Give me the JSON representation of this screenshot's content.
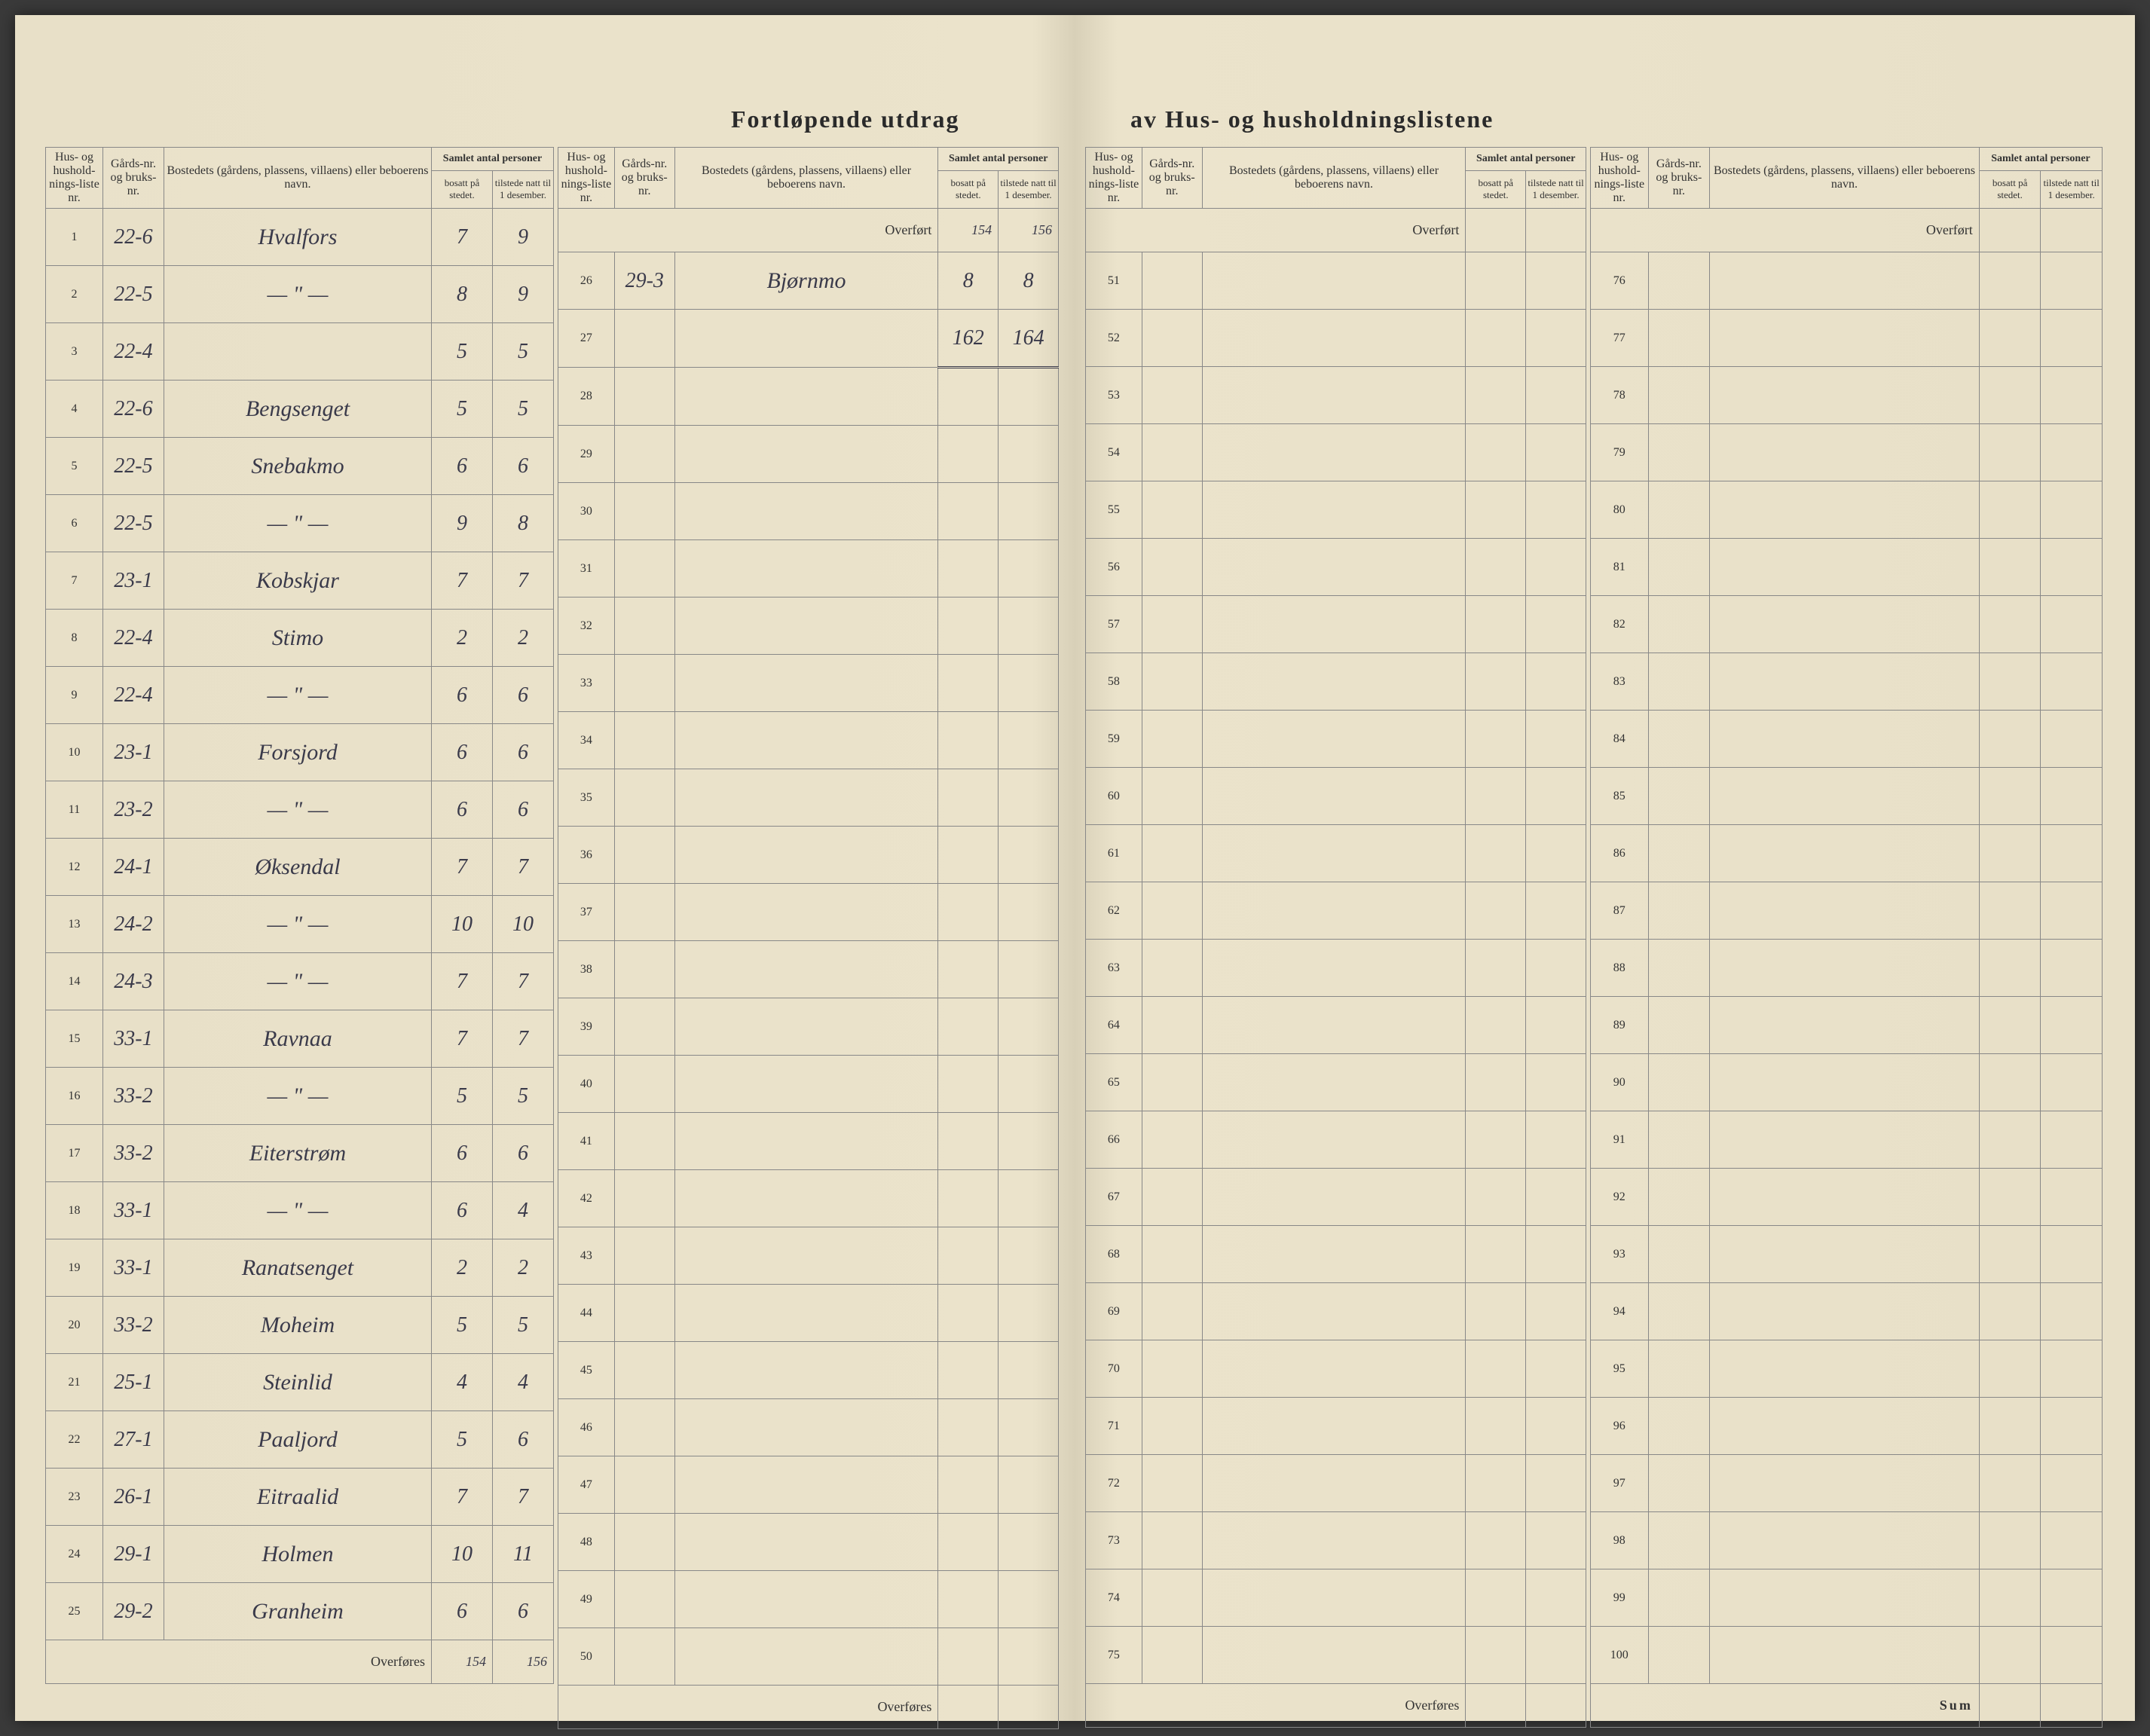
{
  "title_left": "Fortløpende utdrag",
  "title_right": "av Hus- og husholdningslistene",
  "headers": {
    "col1": "Hus- og hushold-nings-liste nr.",
    "col2": "Gårds-nr. og bruks-nr.",
    "col3": "Bostedets (gårdens, plassens, villaens) eller beboerens navn.",
    "col4_group": "Samlet antal personer",
    "col4a": "bosatt på stedet.",
    "col4b": "tilstede natt til 1 desember."
  },
  "overfort_label": "Overført",
  "overfores_label": "Overføres",
  "sum_label": "Sum",
  "section1": {
    "rows": [
      {
        "idx": "1",
        "gard": "22-6",
        "name": "Hvalfors",
        "bosatt": "7",
        "tilstede": "9"
      },
      {
        "idx": "2",
        "gard": "22-5",
        "name": "— \" —",
        "bosatt": "8",
        "tilstede": "9"
      },
      {
        "idx": "3",
        "gard": "22-4",
        "name": "",
        "bosatt": "5",
        "tilstede": "5"
      },
      {
        "idx": "4",
        "gard": "22-6",
        "name": "Bengsenget",
        "bosatt": "5",
        "tilstede": "5"
      },
      {
        "idx": "5",
        "gard": "22-5",
        "name": "Snebakmo",
        "bosatt": "6",
        "tilstede": "6"
      },
      {
        "idx": "6",
        "gard": "22-5",
        "name": "— \" —",
        "bosatt": "9",
        "tilstede": "8"
      },
      {
        "idx": "7",
        "gard": "23-1",
        "name": "Kobskjar",
        "bosatt": "7",
        "tilstede": "7"
      },
      {
        "idx": "8",
        "gard": "22-4",
        "name": "Stimo",
        "bosatt": "2",
        "tilstede": "2"
      },
      {
        "idx": "9",
        "gard": "22-4",
        "name": "— \" —",
        "bosatt": "6",
        "tilstede": "6"
      },
      {
        "idx": "10",
        "gard": "23-1",
        "name": "Forsjord",
        "bosatt": "6",
        "tilstede": "6"
      },
      {
        "idx": "11",
        "gard": "23-2",
        "name": "— \" —",
        "bosatt": "6",
        "tilstede": "6"
      },
      {
        "idx": "12",
        "gard": "24-1",
        "name": "Øksendal",
        "bosatt": "7",
        "tilstede": "7"
      },
      {
        "idx": "13",
        "gard": "24-2",
        "name": "— \" —",
        "bosatt": "10",
        "tilstede": "10"
      },
      {
        "idx": "14",
        "gard": "24-3",
        "name": "— \" —",
        "bosatt": "7",
        "tilstede": "7"
      },
      {
        "idx": "15",
        "gard": "33-1",
        "name": "Ravnaa",
        "bosatt": "7",
        "tilstede": "7"
      },
      {
        "idx": "16",
        "gard": "33-2",
        "name": "— \" —",
        "bosatt": "5",
        "tilstede": "5"
      },
      {
        "idx": "17",
        "gard": "33-2",
        "name": "Eiterstrøm",
        "bosatt": "6",
        "tilstede": "6"
      },
      {
        "idx": "18",
        "gard": "33-1",
        "name": "— \" —",
        "bosatt": "6",
        "tilstede": "4"
      },
      {
        "idx": "19",
        "gard": "33-1",
        "name": "Ranatsenget",
        "bosatt": "2",
        "tilstede": "2"
      },
      {
        "idx": "20",
        "gard": "33-2",
        "name": "Moheim",
        "bosatt": "5",
        "tilstede": "5"
      },
      {
        "idx": "21",
        "gard": "25-1",
        "name": "Steinlid",
        "bosatt": "4",
        "tilstede": "4"
      },
      {
        "idx": "22",
        "gard": "27-1",
        "name": "Paaljord",
        "bosatt": "5",
        "tilstede": "6"
      },
      {
        "idx": "23",
        "gard": "26-1",
        "name": "Eitraalid",
        "bosatt": "7",
        "tilstede": "7"
      },
      {
        "idx": "24",
        "gard": "29-1",
        "name": "Holmen",
        "bosatt": "10",
        "tilstede": "11"
      },
      {
        "idx": "25",
        "gard": "29-2",
        "name": "Granheim",
        "bosatt": "6",
        "tilstede": "6"
      }
    ],
    "overfores_bosatt": "154",
    "overfores_tilstede": "156"
  },
  "section2": {
    "overfort_bosatt": "154",
    "overfort_tilstede": "156",
    "rows": [
      {
        "idx": "26",
        "gard": "29-3",
        "name": "Bjørnmo",
        "bosatt": "8",
        "tilstede": "8"
      },
      {
        "idx": "27",
        "gard": "",
        "name": "",
        "bosatt": "162",
        "tilstede": "164"
      },
      {
        "idx": "28",
        "gard": "",
        "name": "",
        "bosatt": "",
        "tilstede": ""
      },
      {
        "idx": "29",
        "gard": "",
        "name": "",
        "bosatt": "",
        "tilstede": ""
      },
      {
        "idx": "30",
        "gard": "",
        "name": "",
        "bosatt": "",
        "tilstede": ""
      },
      {
        "idx": "31",
        "gard": "",
        "name": "",
        "bosatt": "",
        "tilstede": ""
      },
      {
        "idx": "32",
        "gard": "",
        "name": "",
        "bosatt": "",
        "tilstede": ""
      },
      {
        "idx": "33",
        "gard": "",
        "name": "",
        "bosatt": "",
        "tilstede": ""
      },
      {
        "idx": "34",
        "gard": "",
        "name": "",
        "bosatt": "",
        "tilstede": ""
      },
      {
        "idx": "35",
        "gard": "",
        "name": "",
        "bosatt": "",
        "tilstede": ""
      },
      {
        "idx": "36",
        "gard": "",
        "name": "",
        "bosatt": "",
        "tilstede": ""
      },
      {
        "idx": "37",
        "gard": "",
        "name": "",
        "bosatt": "",
        "tilstede": ""
      },
      {
        "idx": "38",
        "gard": "",
        "name": "",
        "bosatt": "",
        "tilstede": ""
      },
      {
        "idx": "39",
        "gard": "",
        "name": "",
        "bosatt": "",
        "tilstede": ""
      },
      {
        "idx": "40",
        "gard": "",
        "name": "",
        "bosatt": "",
        "tilstede": ""
      },
      {
        "idx": "41",
        "gard": "",
        "name": "",
        "bosatt": "",
        "tilstede": ""
      },
      {
        "idx": "42",
        "gard": "",
        "name": "",
        "bosatt": "",
        "tilstede": ""
      },
      {
        "idx": "43",
        "gard": "",
        "name": "",
        "bosatt": "",
        "tilstede": ""
      },
      {
        "idx": "44",
        "gard": "",
        "name": "",
        "bosatt": "",
        "tilstede": ""
      },
      {
        "idx": "45",
        "gard": "",
        "name": "",
        "bosatt": "",
        "tilstede": ""
      },
      {
        "idx": "46",
        "gard": "",
        "name": "",
        "bosatt": "",
        "tilstede": ""
      },
      {
        "idx": "47",
        "gard": "",
        "name": "",
        "bosatt": "",
        "tilstede": ""
      },
      {
        "idx": "48",
        "gard": "",
        "name": "",
        "bosatt": "",
        "tilstede": ""
      },
      {
        "idx": "49",
        "gard": "",
        "name": "",
        "bosatt": "",
        "tilstede": ""
      },
      {
        "idx": "50",
        "gard": "",
        "name": "",
        "bosatt": "",
        "tilstede": ""
      }
    ]
  },
  "section3": {
    "start_idx": 51,
    "end_idx": 75
  },
  "section4": {
    "start_idx": 76,
    "end_idx": 100
  }
}
